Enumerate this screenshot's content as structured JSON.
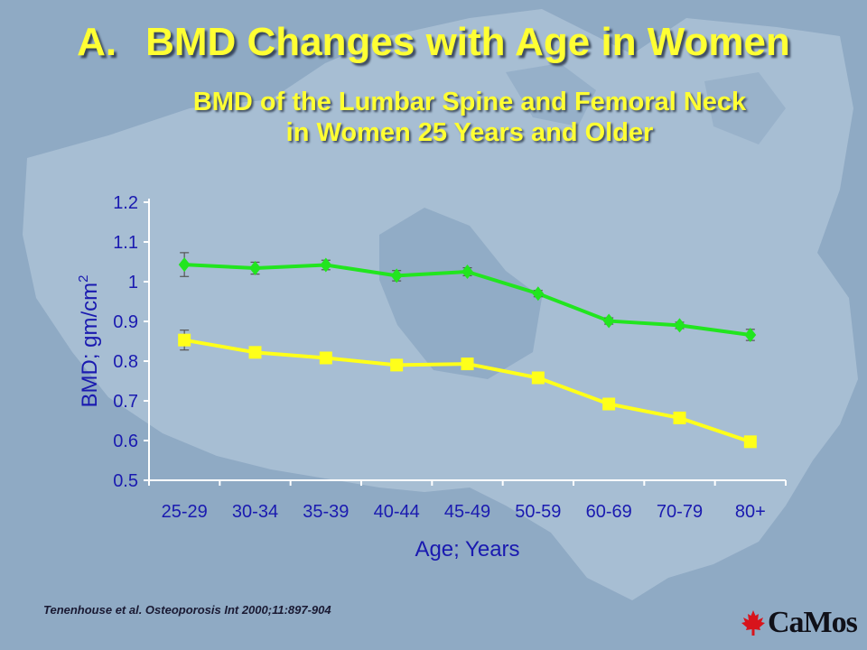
{
  "slide": {
    "title_prefix": "A.",
    "title_main": "BMD Changes with Age in Women",
    "subtitle_line1": "BMD of the Lumbar Spine and Femoral Neck",
    "subtitle_line2": "in Women 25 Years and Older",
    "footnote": "Tenenhouse et al. Osteoporosis Int 2000;11:897-904",
    "logo_text": "CaMos",
    "logo_icon": "maple-leaf-icon"
  },
  "colors": {
    "background": "#8faac4",
    "map": "#a9bfd4",
    "title": "#ffff33",
    "series_lumbar": "#22e51f",
    "series_femoral": "#ffff1a",
    "axis_text": "#1a1ab0",
    "logo_leaf": "#d8141c"
  },
  "chart_data": {
    "type": "line",
    "title": "",
    "xlabel": "Age; Years",
    "ylabel": "BMD; gm/cm",
    "ylabel_superscript": "2",
    "categories": [
      "25-29",
      "30-34",
      "35-39",
      "40-44",
      "45-49",
      "50-59",
      "60-69",
      "70-79",
      "80+"
    ],
    "ylim": [
      0.5,
      1.2
    ],
    "yticks": [
      "0.5",
      "0.6",
      "0.7",
      "0.8",
      "0.9",
      "1",
      "1.1",
      "1.2"
    ],
    "grid": false,
    "legend": "none",
    "series": [
      {
        "marker": "diamond",
        "color": "#22e51f",
        "values": [
          1.043,
          1.034,
          1.042,
          1.015,
          1.025,
          0.97,
          0.901,
          0.89,
          0.866
        ],
        "errors": [
          0.03,
          0.015,
          0.012,
          0.013,
          0.01,
          0.008,
          0.008,
          0.008,
          0.014
        ]
      },
      {
        "marker": "square",
        "color": "#ffff1a",
        "values": [
          0.853,
          0.822,
          0.808,
          0.79,
          0.793,
          0.758,
          0.692,
          0.657,
          0.597
        ],
        "errors": [
          0.025,
          0.01,
          0.008,
          0.008,
          0.008,
          0.008,
          0.008,
          0.008,
          0.01
        ]
      }
    ]
  }
}
